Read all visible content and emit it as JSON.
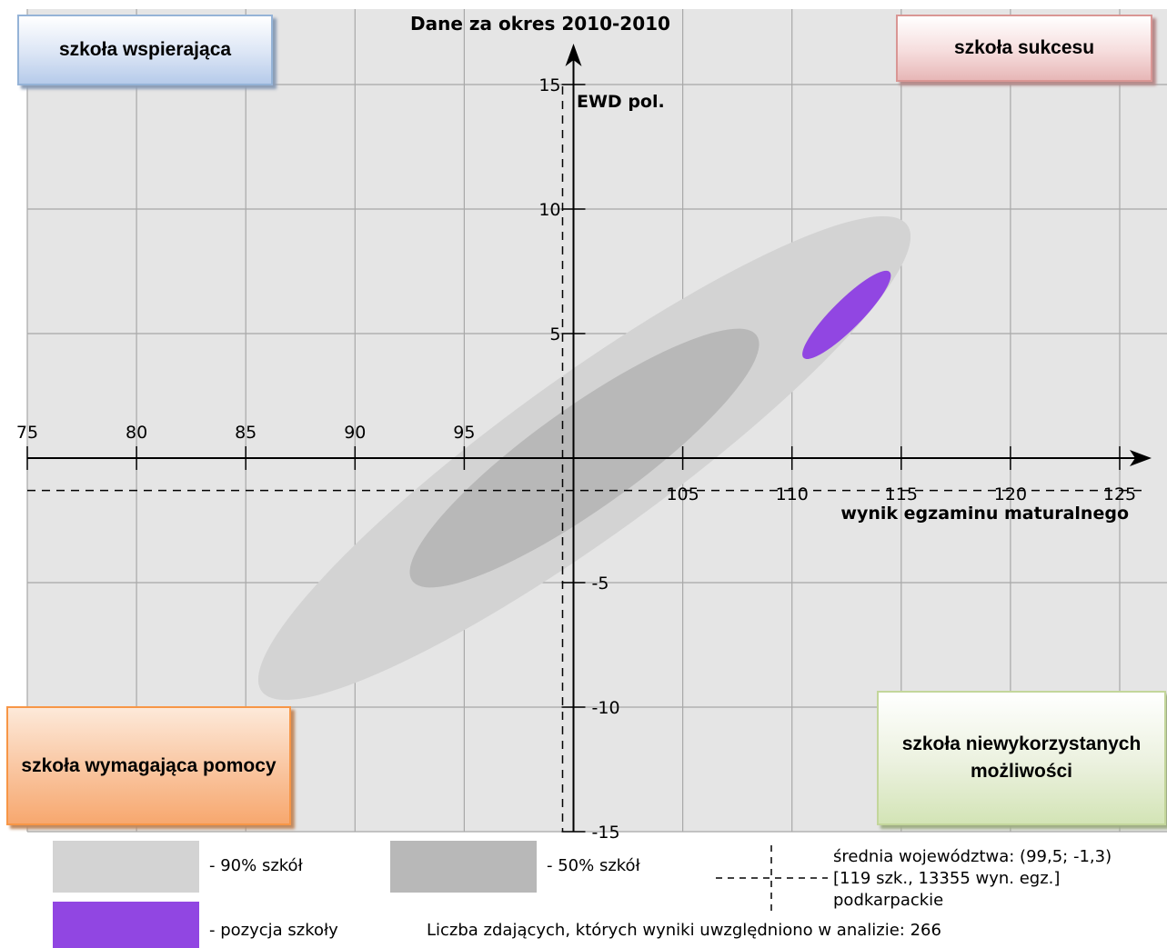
{
  "chart_data": {
    "type": "scatter",
    "title": "Dane za okres 2010-2010",
    "xlabel": "wynik egzaminu maturalnego",
    "ylabel": "EWD pol.",
    "xlim": [
      75,
      125
    ],
    "ylim": [
      -15,
      15
    ],
    "x_ticks": [
      75,
      80,
      85,
      90,
      95,
      105,
      110,
      115,
      120,
      125
    ],
    "y_ticks": [
      15,
      10,
      5,
      -5,
      -10,
      -15
    ],
    "grid": true,
    "series": [
      {
        "name": "90% szkół",
        "shape": "ellipse",
        "color": "#d3d3d3",
        "x_range": [
          85.5,
          115.5
        ],
        "y_range": [
          -9.5,
          9.5
        ]
      },
      {
        "name": "50% szkół",
        "shape": "ellipse",
        "color": "#b8b8b8",
        "x_range": [
          92.5,
          108.5
        ],
        "y_range": [
          -5,
          5
        ]
      },
      {
        "name": "pozycja szkoły",
        "shape": "ellipse",
        "color": "#9146e2",
        "x_range": [
          110.5,
          114.5
        ],
        "y_range": [
          4,
          7.5
        ]
      }
    ],
    "reference": {
      "average_x": 99.5,
      "average_y": -1.3,
      "lines": [
        "średnia województwa: (99,5; -1,3)",
        "[119 szk., 13355 wyn. egz.]",
        "podkarpackie"
      ]
    },
    "legend": {
      "placement": "bottom",
      "items": [
        "- 90% szkół",
        "- 50% szkół",
        "- pozycja szkoły"
      ]
    },
    "note": "Liczba zdających, których wyniki uwzględniono w analizie: 266"
  },
  "quadrants": {
    "top_left": "szkoła wspierająca",
    "top_right": "szkoła sukcesu",
    "bottom_left": "szkoła wymagająca pomocy",
    "bottom_right": "szkoła niewykorzystanych możliwości"
  },
  "colors": {
    "plot_bg": "#e5e5e5",
    "grid": "#a8a8a8",
    "ellipse_90": "#d3d3d3",
    "ellipse_50": "#b8b8b8",
    "school": "#9146e2"
  }
}
